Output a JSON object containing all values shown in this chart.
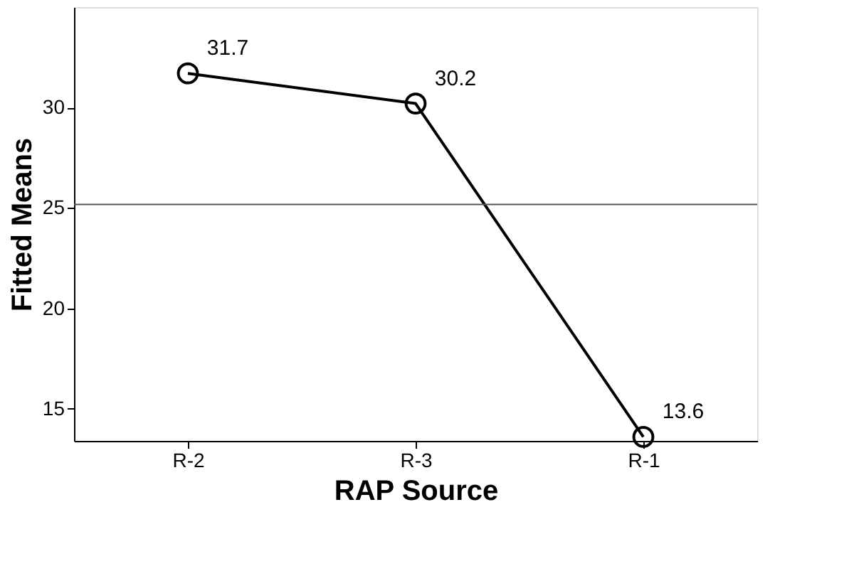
{
  "chart_data": {
    "type": "line",
    "xlabel": "RAP Source",
    "ylabel": "Fitted Means",
    "categories": [
      "R-2",
      "R-3",
      "R-1"
    ],
    "series": [
      {
        "color": "#000000",
        "values": [
          31.7,
          30.2,
          13.6
        ]
      }
    ],
    "ylim": [
      13.4,
      35
    ],
    "yticks": [
      15,
      20,
      25,
      30
    ],
    "ref_lines": [
      {
        "axis": "y",
        "value": 25.17,
        "color": "#555555"
      }
    ],
    "marker": "circle",
    "data_labels": true,
    "grid": false
  }
}
